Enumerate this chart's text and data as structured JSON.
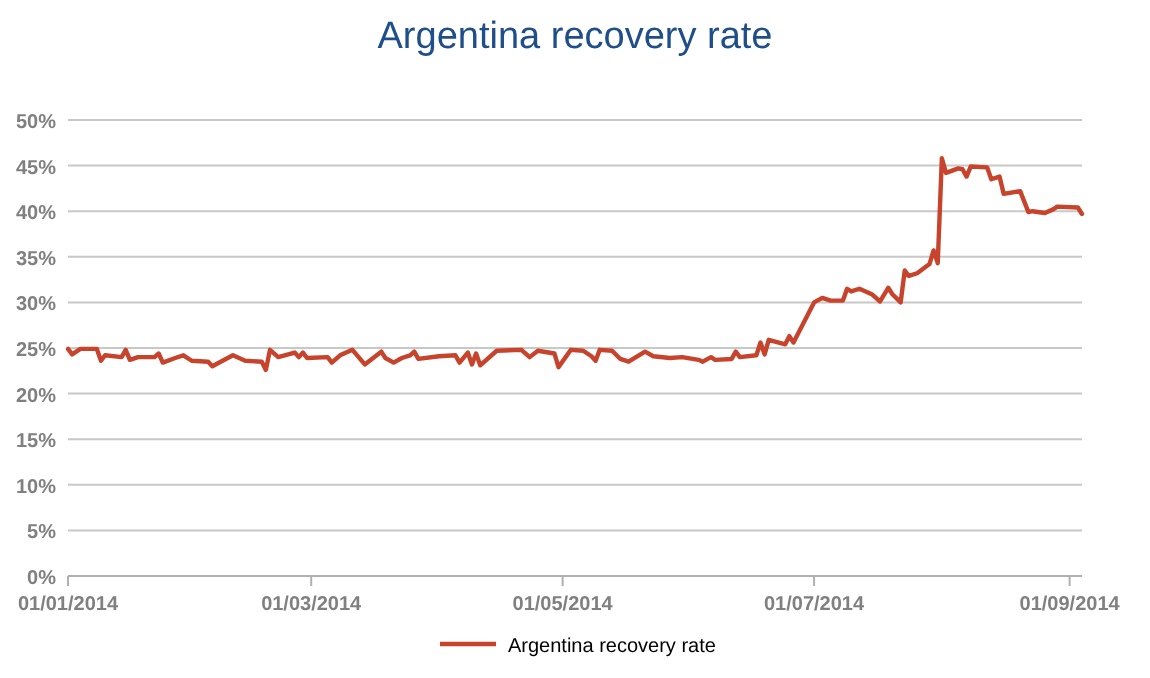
{
  "chart_data": {
    "type": "line",
    "title": "Argentina recovery rate",
    "x": [
      "2014-01-01",
      "2014-01-02",
      "2014-01-04",
      "2014-01-08",
      "2014-01-09",
      "2014-01-10",
      "2014-01-14",
      "2014-01-15",
      "2014-01-16",
      "2014-01-18",
      "2014-01-22",
      "2014-01-23",
      "2014-01-24",
      "2014-01-27",
      "2014-01-29",
      "2014-01-31",
      "2014-02-04",
      "2014-02-05",
      "2014-02-10",
      "2014-02-13",
      "2014-02-17",
      "2014-02-18",
      "2014-02-19",
      "2014-02-21",
      "2014-02-25",
      "2014-02-26",
      "2014-02-27",
      "2014-02-28",
      "2014-03-05",
      "2014-03-06",
      "2014-03-08",
      "2014-03-11",
      "2014-03-14",
      "2014-03-18",
      "2014-03-19",
      "2014-03-21",
      "2014-03-23",
      "2014-03-25",
      "2014-03-26",
      "2014-03-27",
      "2014-04-01",
      "2014-04-05",
      "2014-04-06",
      "2014-04-08",
      "2014-04-09",
      "2014-04-10",
      "2014-04-11",
      "2014-04-15",
      "2014-04-21",
      "2014-04-23",
      "2014-04-25",
      "2014-04-29",
      "2014-04-30",
      "2014-05-03",
      "2014-05-06",
      "2014-05-08",
      "2014-05-09",
      "2014-05-10",
      "2014-05-13",
      "2014-05-15",
      "2014-05-17",
      "2014-05-21",
      "2014-05-23",
      "2014-05-27",
      "2014-05-30",
      "2014-06-03",
      "2014-06-04",
      "2014-06-06",
      "2014-06-07",
      "2014-06-11",
      "2014-06-12",
      "2014-06-13",
      "2014-06-17",
      "2014-06-18",
      "2014-06-19",
      "2014-06-20",
      "2014-06-24",
      "2014-06-25",
      "2014-06-26",
      "2014-07-01",
      "2014-07-03",
      "2014-07-05",
      "2014-07-08",
      "2014-07-09",
      "2014-07-10",
      "2014-07-12",
      "2014-07-15",
      "2014-07-17",
      "2014-07-19",
      "2014-07-20",
      "2014-07-22",
      "2014-07-23",
      "2014-07-24",
      "2014-07-26",
      "2014-07-29",
      "2014-07-30",
      "2014-07-31",
      "2014-08-01",
      "2014-08-02",
      "2014-08-05",
      "2014-08-06",
      "2014-08-07",
      "2014-08-08",
      "2014-08-12",
      "2014-08-13",
      "2014-08-15",
      "2014-08-16",
      "2014-08-20",
      "2014-08-22",
      "2014-08-23",
      "2014-08-26",
      "2014-08-28",
      "2014-08-29",
      "2014-09-03",
      "2014-09-04"
    ],
    "series": [
      {
        "name": "Argentina recovery rate",
        "color": "#c8432b",
        "values": [
          24.9,
          24.3,
          24.9,
          24.9,
          23.6,
          24.2,
          24.0,
          24.8,
          23.7,
          24.0,
          24.0,
          24.4,
          23.4,
          23.9,
          24.2,
          23.6,
          23.5,
          23.0,
          24.2,
          23.6,
          23.5,
          22.6,
          24.8,
          24.0,
          24.5,
          24.0,
          24.5,
          23.9,
          24.0,
          23.4,
          24.2,
          24.8,
          23.2,
          24.6,
          23.9,
          23.4,
          23.9,
          24.2,
          24.6,
          23.8,
          24.1,
          24.2,
          23.4,
          24.5,
          23.2,
          24.4,
          23.1,
          24.7,
          24.8,
          24.0,
          24.7,
          24.4,
          22.9,
          24.8,
          24.7,
          24.1,
          23.6,
          24.8,
          24.7,
          23.8,
          23.5,
          24.6,
          24.1,
          23.9,
          24.0,
          23.7,
          23.5,
          24.0,
          23.7,
          23.8,
          24.6,
          24.0,
          24.2,
          25.6,
          24.3,
          25.9,
          25.4,
          26.3,
          25.6,
          30.0,
          30.5,
          30.2,
          30.2,
          31.5,
          31.2,
          31.5,
          30.9,
          30.1,
          31.6,
          30.9,
          30.0,
          33.5,
          32.9,
          33.2,
          34.2,
          35.7,
          34.3,
          45.8,
          44.2,
          44.7,
          44.6,
          43.8,
          44.9,
          44.8,
          43.5,
          43.8,
          41.9,
          42.2,
          39.9,
          40.0,
          39.8,
          40.2,
          40.5,
          40.4,
          39.7
        ]
      }
    ],
    "xlim": [
      "2014-01-01",
      "2014-09-04"
    ],
    "xticks": [
      {
        "value": "2014-01-01",
        "label": "01/01/2014"
      },
      {
        "value": "2014-03-01",
        "label": "01/03/2014"
      },
      {
        "value": "2014-05-01",
        "label": "01/05/2014"
      },
      {
        "value": "2014-07-01",
        "label": "01/07/2014"
      },
      {
        "value": "2014-09-01",
        "label": "01/09/2014"
      }
    ],
    "ylim": [
      0,
      50
    ],
    "yticks": [
      {
        "value": 0,
        "label": "0%"
      },
      {
        "value": 5,
        "label": "5%"
      },
      {
        "value": 10,
        "label": "10%"
      },
      {
        "value": 15,
        "label": "15%"
      },
      {
        "value": 20,
        "label": "20%"
      },
      {
        "value": 25,
        "label": "25%"
      },
      {
        "value": 30,
        "label": "30%"
      },
      {
        "value": 35,
        "label": "35%"
      },
      {
        "value": 40,
        "label": "40%"
      },
      {
        "value": 45,
        "label": "45%"
      },
      {
        "value": 50,
        "label": "50%"
      }
    ],
    "grid": "y",
    "legend": "bottom",
    "marker": "none",
    "line_style": "solid"
  }
}
